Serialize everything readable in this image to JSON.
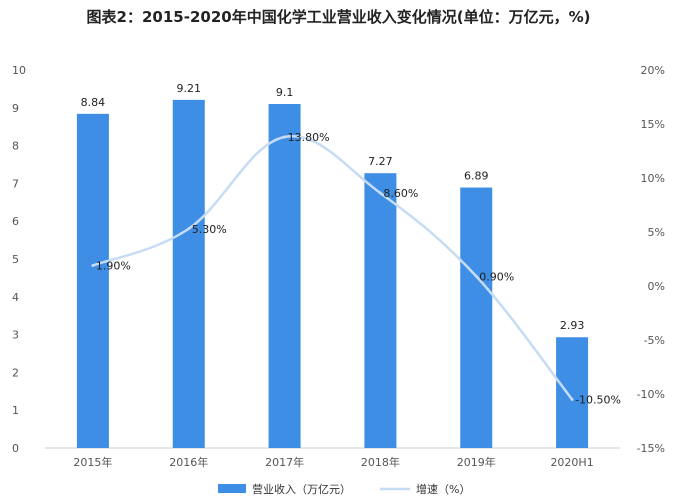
{
  "chart_data": {
    "type": "bar",
    "title": "图表2：2015-2020年中国化学工业营业收入变化情况(单位：万亿元，%)",
    "categories": [
      "2015年",
      "2016年",
      "2017年",
      "2018年",
      "2019年",
      "2020H1"
    ],
    "series": [
      {
        "name": "营业收入（万亿元）",
        "type": "bar",
        "axis": "left",
        "values": [
          8.84,
          9.21,
          9.1,
          7.27,
          6.89,
          2.93
        ],
        "labels": [
          "8.84",
          "9.21",
          "9.1",
          "7.27",
          "6.89",
          "2.93"
        ],
        "color": "#3e8ee6"
      },
      {
        "name": "增速（%）",
        "type": "line",
        "axis": "right",
        "values": [
          1.9,
          5.3,
          13.8,
          8.6,
          0.9,
          -10.5
        ],
        "labels": [
          "1.90%",
          "5.30%",
          "13.80%",
          "8.60%",
          "0.90%",
          "-10.50%"
        ],
        "color": "#c6dcf5"
      }
    ],
    "left_axis": {
      "ylim": [
        0,
        10
      ],
      "ticks": [
        "0",
        "1",
        "2",
        "3",
        "4",
        "5",
        "6",
        "7",
        "8",
        "9",
        "10"
      ]
    },
    "right_axis": {
      "ylim": [
        -15,
        20
      ],
      "tick_values": [
        -15,
        -10,
        -5,
        0,
        5,
        10,
        15,
        20
      ],
      "ticks": [
        "-15%",
        "-10%",
        "-5%",
        "0%",
        "5%",
        "10%",
        "15%",
        "20%"
      ]
    },
    "grid": false,
    "legend": "bottom-center"
  }
}
